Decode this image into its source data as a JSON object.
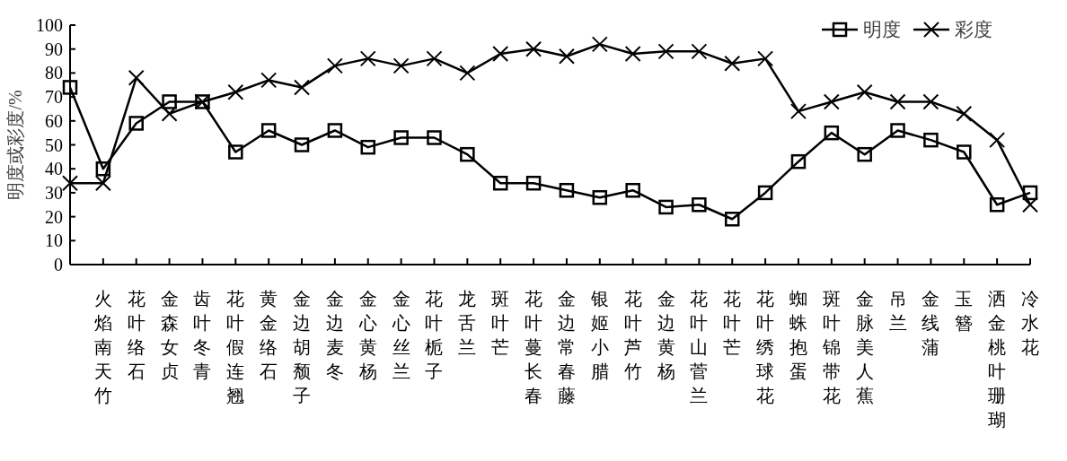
{
  "chart_data": {
    "type": "line",
    "ylabel": "明度或彩度/%",
    "categories": [
      null,
      "火焰南天竹",
      "花叶络石",
      "金森女贞",
      "齿叶冬青",
      "花叶假连翘",
      "黄金络石",
      "金边胡颓子",
      "金边麦冬",
      "金心黄杨",
      "金心丝兰",
      "花叶栀子",
      "龙舌兰",
      "斑叶芒",
      "花叶蔓长春",
      "金边常春藤",
      "银姬小腊",
      "花叶芦竹",
      "金边黄杨",
      "花叶山菅兰",
      "花叶芒",
      "花叶绣球花",
      "蜘蛛抱蛋",
      "斑叶锦带花",
      "金脉美人蕉",
      "吊兰",
      "金线蒲",
      "玉簪",
      "洒金桃叶珊瑚",
      "冷水花"
    ],
    "series": [
      {
        "name": "明度",
        "color": "#000000",
        "marker": "square",
        "values": [
          74,
          40,
          59,
          68,
          68,
          47,
          56,
          50,
          56,
          49,
          53,
          53,
          46,
          34,
          34,
          31,
          28,
          31,
          24,
          25,
          19,
          30,
          43,
          55,
          46,
          56,
          52,
          47,
          25,
          30
        ]
      },
      {
        "name": "彩度",
        "color": "#000000",
        "marker": "cross",
        "values": [
          34,
          34,
          78,
          63,
          68,
          72,
          77,
          74,
          83,
          86,
          83,
          86,
          80,
          88,
          90,
          87,
          92,
          88,
          89,
          89,
          84,
          86,
          64,
          68,
          72,
          68,
          68,
          63,
          52,
          25
        ]
      }
    ],
    "ylim": [
      0,
      100
    ],
    "yticks": [
      0,
      10,
      20,
      30,
      40,
      50,
      60,
      70,
      80,
      90,
      100
    ],
    "grid": false,
    "legend": "top right",
    "line_style": "solid"
  }
}
